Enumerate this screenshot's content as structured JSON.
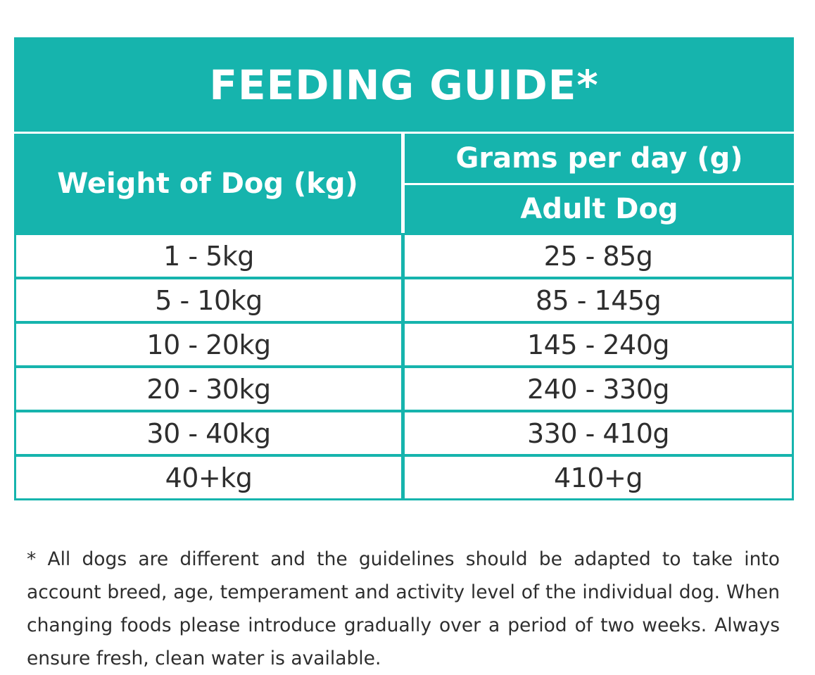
{
  "title": "FEEDING GUIDE*",
  "header": {
    "weight_label": "Weight of Dog (kg)",
    "grams_label": "Grams per day (g)",
    "adult_label": "Adult Dog"
  },
  "rows": [
    {
      "weight": "1 - 5kg",
      "grams": "25 - 85g"
    },
    {
      "weight": "5 - 10kg",
      "grams": "85 - 145g"
    },
    {
      "weight": "10 - 20kg",
      "grams": "145 - 240g"
    },
    {
      "weight": "20 - 30kg",
      "grams": "240 - 330g"
    },
    {
      "weight": "30 - 40kg",
      "grams": "330 - 410g"
    },
    {
      "weight": "40+kg",
      "grams": "410+g"
    }
  ],
  "footnote": "* All dogs are different and the guidelines should be adapted to take into account breed, age, temperament and activity level of the individual dog. When changing foods please introduce gradually over a period of two weeks. Always ensure fresh, clean water is available.",
  "colors": {
    "accent": "#16b4ad",
    "text": "#2e2e2e",
    "background": "#ffffff"
  }
}
